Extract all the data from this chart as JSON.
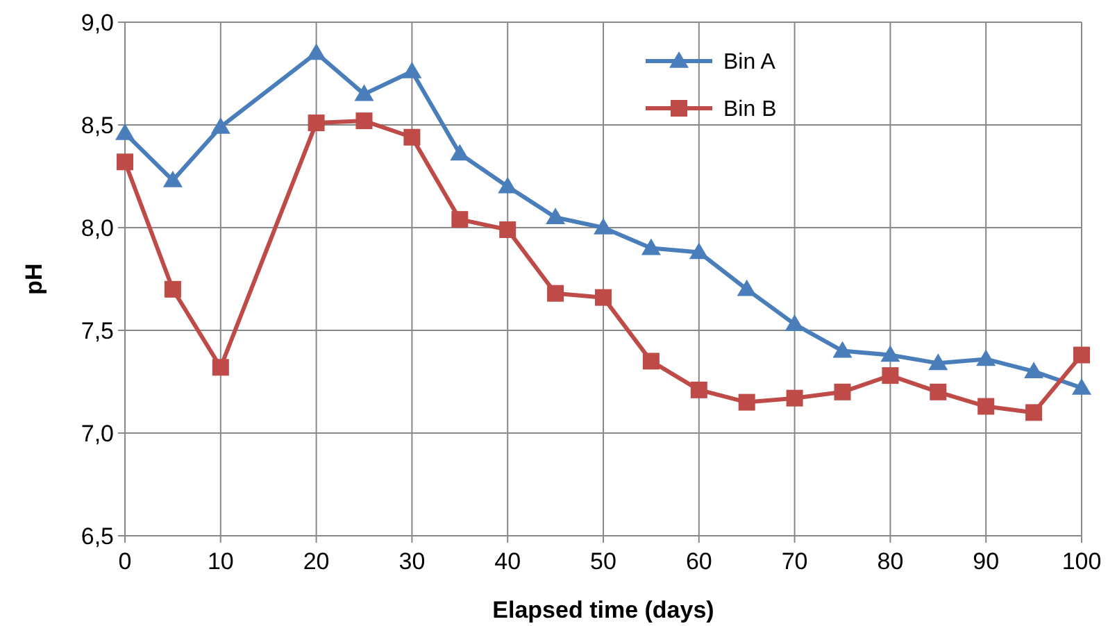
{
  "chart_data": {
    "type": "line",
    "xlabel": "Elapsed time (days)",
    "ylabel": "pH",
    "x": [
      0,
      5,
      10,
      20,
      25,
      30,
      35,
      40,
      45,
      50,
      55,
      60,
      65,
      70,
      75,
      80,
      85,
      90,
      95,
      100
    ],
    "series": [
      {
        "name": "Bin A",
        "color": "#4a7ebb",
        "marker": "triangle",
        "values": [
          8.46,
          8.23,
          8.49,
          8.85,
          8.65,
          8.76,
          8.36,
          8.2,
          8.05,
          8.0,
          7.9,
          7.88,
          7.7,
          7.53,
          7.4,
          7.38,
          7.34,
          7.36,
          7.3,
          7.22
        ]
      },
      {
        "name": "Bin B",
        "color": "#be4b48",
        "marker": "square",
        "values": [
          8.32,
          7.7,
          7.32,
          8.51,
          8.52,
          8.44,
          8.04,
          7.99,
          7.68,
          7.66,
          7.35,
          7.21,
          7.15,
          7.17,
          7.2,
          7.28,
          7.2,
          7.13,
          7.1,
          7.38
        ]
      }
    ],
    "xlim": [
      0,
      100
    ],
    "xticks": [
      0,
      10,
      20,
      30,
      40,
      50,
      60,
      70,
      80,
      90,
      100
    ],
    "ylim": [
      6.5,
      9
    ],
    "yticks": [
      {
        "value": 6.5,
        "label": "6,5"
      },
      {
        "value": 7,
        "label": "7,0"
      },
      {
        "value": 7.5,
        "label": "7,5"
      },
      {
        "value": 8,
        "label": "8,0"
      },
      {
        "value": 8.5,
        "label": "8,5"
      },
      {
        "value": 9,
        "label": "9,0"
      }
    ],
    "grid": true,
    "legend": "top",
    "line_style": "solid"
  }
}
